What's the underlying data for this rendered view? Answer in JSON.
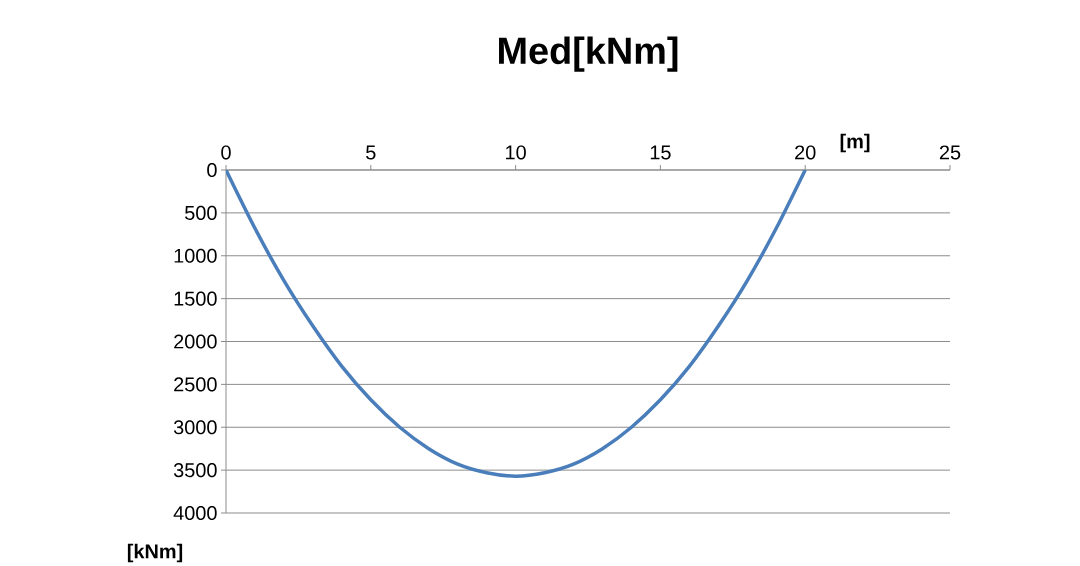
{
  "chart_data": {
    "type": "line",
    "title": "Med[kNm]",
    "xlabel": "[m]",
    "ylabel": "[kNm]",
    "x": [
      0,
      1,
      2,
      3,
      4,
      5,
      6,
      7,
      8,
      9,
      10,
      11,
      12,
      13,
      14,
      15,
      16,
      17,
      18,
      19,
      20
    ],
    "series": [
      {
        "color": "#4a7ebb",
        "values": [
          0,
          680,
          1290,
          1820,
          2290,
          2680,
          3000,
          3250,
          3430,
          3530,
          3570,
          3530,
          3430,
          3250,
          3000,
          2680,
          2290,
          1820,
          1290,
          680,
          0
        ]
      }
    ],
    "xlim": [
      0,
      25
    ],
    "ylim": [
      4000,
      0
    ],
    "xticks": [
      0,
      5,
      10,
      15,
      20,
      25
    ],
    "yticks": [
      0,
      500,
      1000,
      1500,
      2000,
      2500,
      3000,
      3500,
      4000
    ],
    "grid": "y"
  }
}
